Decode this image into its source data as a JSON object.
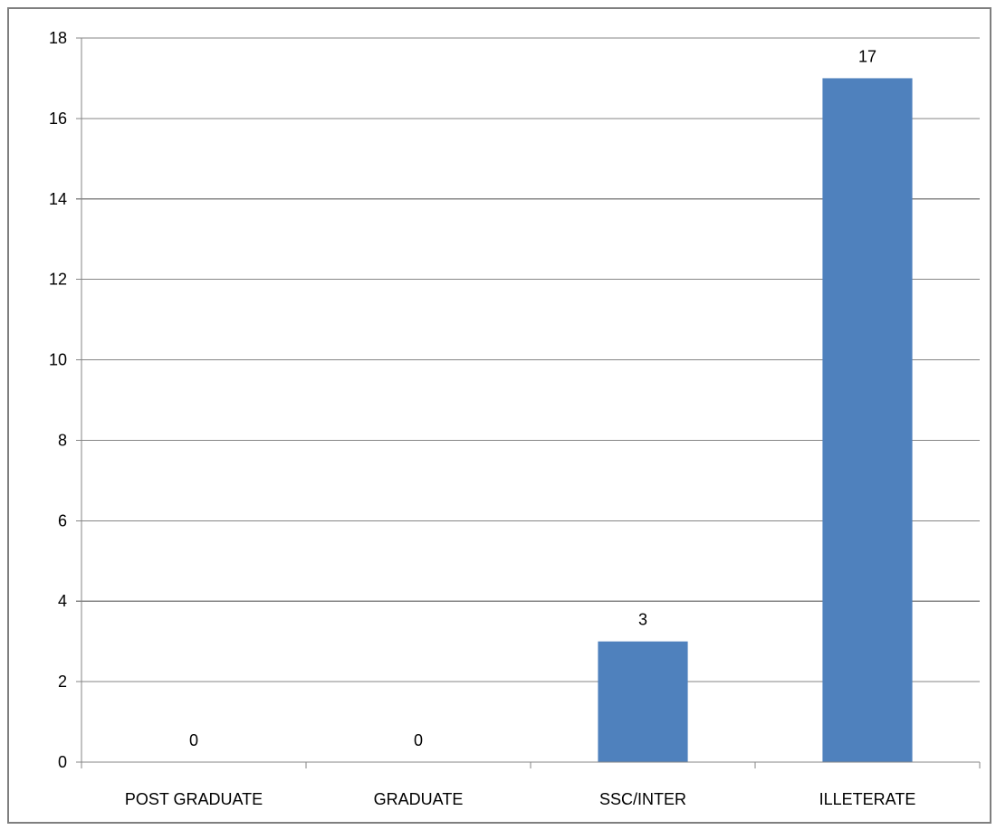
{
  "chart_data": {
    "type": "bar",
    "categories": [
      "POST GRADUATE",
      "GRADUATE",
      "SSC/INTER",
      "ILLETERATE"
    ],
    "values": [
      0,
      0,
      3,
      17
    ],
    "data_labels": [
      "0",
      "0",
      "3",
      "17"
    ],
    "title": "",
    "xlabel": "",
    "ylabel": "",
    "ylim": [
      0,
      18
    ],
    "yticks": [
      0,
      2,
      4,
      6,
      8,
      10,
      12,
      14,
      16,
      18
    ],
    "grid": true,
    "legend": "none",
    "colors": {
      "bar": "#4f81bd",
      "grid": "#868686",
      "frame": "#7f7f7f"
    }
  }
}
